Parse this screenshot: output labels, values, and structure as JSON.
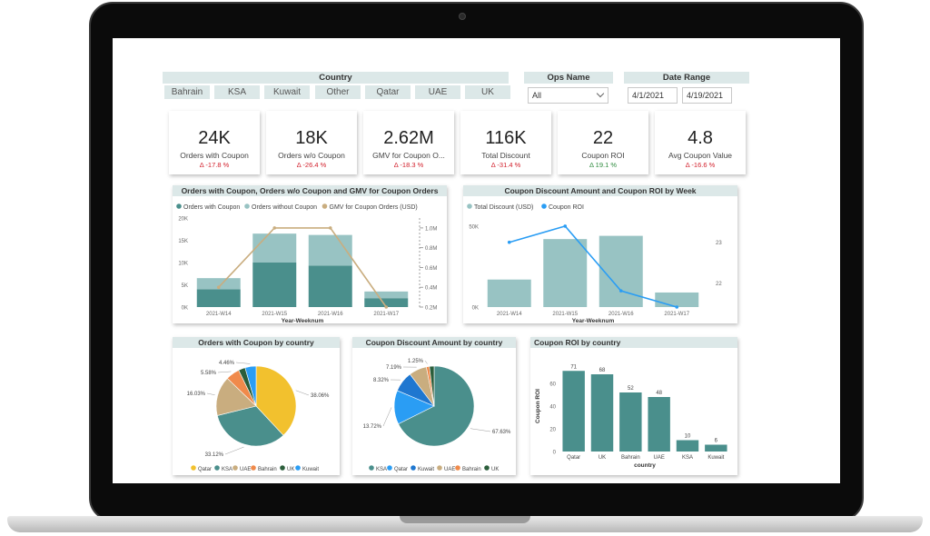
{
  "slicers": {
    "country_title": "Country",
    "countries": [
      "Bahrain",
      "KSA",
      "Kuwait",
      "Other",
      "Qatar",
      "UAE",
      "UK"
    ],
    "ops_title": "Ops Name",
    "ops_value": "All",
    "date_title": "Date Range",
    "date_from": "4/1/2021",
    "date_to": "4/19/2021"
  },
  "kpis": [
    {
      "value": "24K",
      "label": "Orders with Coupon",
      "change": "Δ -17.8 %",
      "direction": "down"
    },
    {
      "value": "18K",
      "label": "Orders w/o Coupon",
      "change": "Δ -26.4 %",
      "direction": "down"
    },
    {
      "value": "2.62M",
      "label": "GMV for Coupon O...",
      "change": "Δ -18.3 %",
      "direction": "down"
    },
    {
      "value": "116K",
      "label": "Total Discount",
      "change": "Δ -31.4 %",
      "direction": "down"
    },
    {
      "value": "22",
      "label": "Coupon ROI",
      "change": "Δ 19.1 %",
      "direction": "up"
    },
    {
      "value": "4.8",
      "label": "Avg Coupon Value",
      "change": "Δ -16.6 %",
      "direction": "down"
    }
  ],
  "chart_data": [
    {
      "type": "bar",
      "title": "Orders with Coupon, Orders w/o Coupon and GMV for Coupon Orders",
      "xlabel": "Year-Weeknum",
      "categories": [
        "2021-W14",
        "2021-W15",
        "2021-W16",
        "2021-W17"
      ],
      "stacked": true,
      "series": [
        {
          "name": "Orders with Coupon",
          "values": [
            4000,
            10000,
            9300,
            2000
          ],
          "color": "#4a8f8c"
        },
        {
          "name": "Orders without Coupon",
          "values": [
            2500,
            6500,
            6900,
            1500
          ],
          "color": "#98c3c3"
        },
        {
          "name": "GMV for Coupon Orders (USD)",
          "type": "line",
          "axis": "right",
          "values": [
            400000,
            1000000,
            1000000,
            200000
          ],
          "color": "#c9ad7f"
        }
      ],
      "yticks": [
        "20K",
        "15K",
        "10K",
        "5K",
        "0K"
      ],
      "ylim": [
        0,
        20000
      ],
      "y2ticks": [
        "1.0M",
        "0.8M",
        "0.6M",
        "0.4M",
        "0.2M"
      ],
      "y2lim": [
        200000,
        1100000
      ],
      "legend": "top-left"
    },
    {
      "type": "bar",
      "title": "Coupon Discount Amount and Coupon ROI by Week",
      "xlabel": "Year-Weeknum",
      "categories": [
        "2021-W14",
        "2021-W15",
        "2021-W16",
        "2021-W17"
      ],
      "series": [
        {
          "name": "Total Discount (USD)",
          "values": [
            17000,
            42000,
            44000,
            9000
          ],
          "color": "#98c3c3"
        },
        {
          "name": "Coupon ROI",
          "type": "line",
          "axis": "right",
          "values": [
            23.0,
            23.4,
            21.8,
            21.4
          ],
          "color": "#2a9df4"
        }
      ],
      "yticks": [
        "50K",
        "0K"
      ],
      "ylim": [
        0,
        55000
      ],
      "y2ticks": [
        "23",
        "22"
      ],
      "y2lim": [
        21.4,
        23.6
      ],
      "legend": "top-left"
    },
    {
      "type": "pie",
      "title": "Orders with Coupon by country",
      "slices": [
        {
          "label": "Qatar",
          "pct": 38.06,
          "text": "38.06%",
          "color": "#f2c12e"
        },
        {
          "label": "KSA",
          "pct": 33.12,
          "text": "33.12%",
          "color": "#4a8f8c"
        },
        {
          "label": "UAE",
          "pct": 16.03,
          "text": "16.03%",
          "color": "#c9ad7f"
        },
        {
          "label": "Bahrain",
          "pct": 5.58,
          "text": "5.58%",
          "color": "#f08a4b"
        },
        {
          "label": "UK",
          "pct": 2.75,
          "text": "",
          "color": "#2b5e3b"
        },
        {
          "label": "Kuwait",
          "pct": 4.46,
          "text": "4.46%",
          "color": "#2a9df4"
        }
      ],
      "legend": "bottom"
    },
    {
      "type": "pie",
      "title": "Coupon Discount Amount by country",
      "slices": [
        {
          "label": "KSA",
          "pct": 67.63,
          "text": "67.63%",
          "color": "#4a8f8c"
        },
        {
          "label": "Qatar",
          "pct": 13.72,
          "text": "13.72%",
          "color": "#2a9df4"
        },
        {
          "label": "Kuwait",
          "pct": 8.32,
          "text": "8.32%",
          "color": "#1f77d0"
        },
        {
          "label": "UAE",
          "pct": 7.19,
          "text": "7.19%",
          "color": "#c9ad7f"
        },
        {
          "label": "Bahrain",
          "pct": 1.25,
          "text": "1.25%",
          "color": "#f08a4b"
        },
        {
          "label": "UK",
          "pct": 1.89,
          "text": "",
          "color": "#2b5e3b"
        }
      ],
      "legend": "bottom"
    },
    {
      "type": "bar",
      "title": "Coupon ROI by country",
      "xlabel": "country",
      "ylabel": "Coupon ROI",
      "categories": [
        "Qatar",
        "UK",
        "Bahrain",
        "UAE",
        "KSA",
        "Kuwait"
      ],
      "values": [
        71,
        68,
        52,
        48,
        10,
        6
      ],
      "color": "#4a8f8c",
      "yticks": [
        "60",
        "40",
        "20",
        "0"
      ],
      "ylim": [
        0,
        80
      ]
    }
  ]
}
